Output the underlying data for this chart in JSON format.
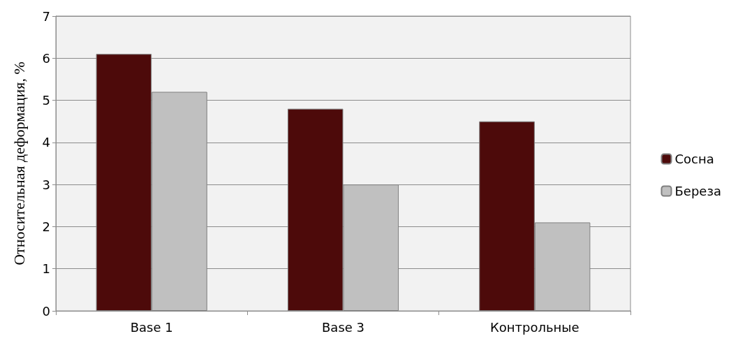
{
  "chart_data": {
    "type": "bar",
    "ylabel": "Относительная деформация, %",
    "categories": [
      "Base 1",
      "Base 3",
      "Контрольные"
    ],
    "series": [
      {
        "name": "Сосна",
        "color": "#4d0a0a",
        "values": [
          6.1,
          4.8,
          4.5
        ]
      },
      {
        "name": "Береза",
        "color": "#c0c0c0",
        "values": [
          5.2,
          3.0,
          2.1
        ]
      }
    ],
    "ylim": [
      0,
      7
    ],
    "yticks": [
      0,
      1,
      2,
      3,
      4,
      5,
      6,
      7
    ],
    "grid": "y",
    "legend": "right"
  }
}
